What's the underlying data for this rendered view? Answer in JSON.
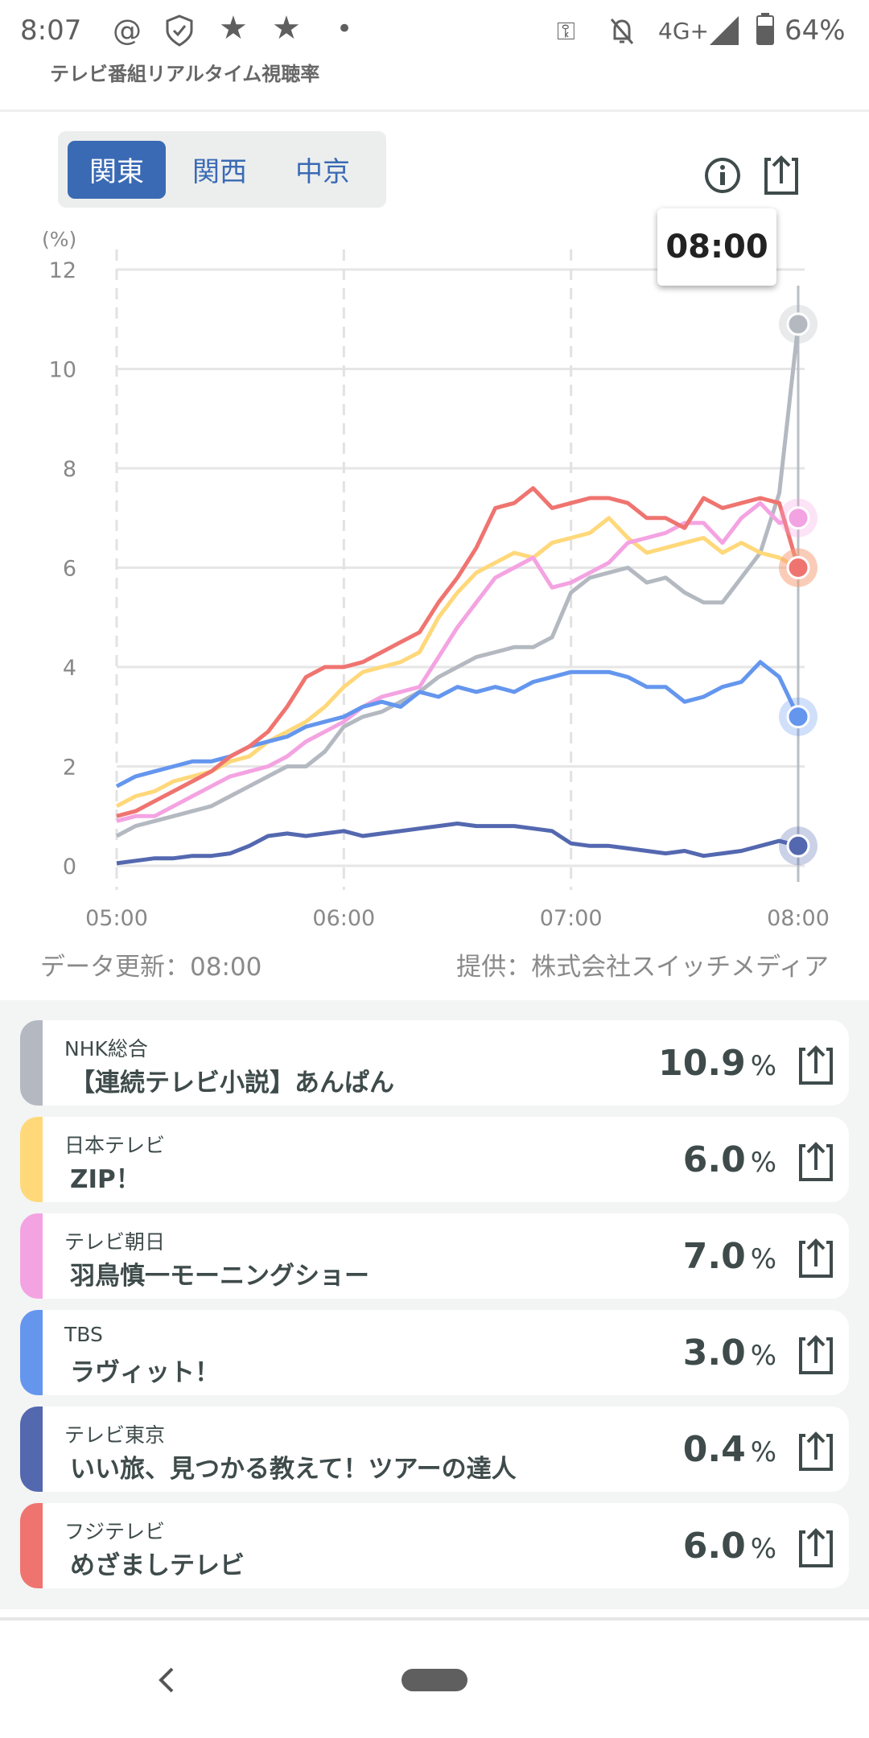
{
  "status": {
    "time": "8:07",
    "network": "4G+",
    "battery": "64%"
  },
  "app": {
    "title": "テレビ番組リアルタイム視聴率"
  },
  "tabs": [
    {
      "label": "関東",
      "active": true
    },
    {
      "label": "関西",
      "active": false
    },
    {
      "label": "中京",
      "active": false
    }
  ],
  "tooltip": {
    "time": "08:00"
  },
  "chart_data": {
    "type": "line",
    "ylabel": "(%)",
    "ylim": [
      0,
      12
    ],
    "yticks": [
      0,
      2,
      4,
      6,
      8,
      10,
      12
    ],
    "xticks": [
      "05:00",
      "06:00",
      "07:00",
      "08:00"
    ],
    "x_start_min": 0,
    "x_end_min": 180,
    "step_min": 5,
    "grid": true,
    "series": [
      {
        "name": "NHK総合",
        "color": "#b4b9c1",
        "values": [
          0.6,
          0.8,
          0.9,
          1.0,
          1.1,
          1.2,
          1.4,
          1.6,
          1.8,
          2.0,
          2.0,
          2.3,
          2.8,
          3.0,
          3.1,
          3.3,
          3.5,
          3.8,
          4.0,
          4.2,
          4.3,
          4.4,
          4.4,
          4.6,
          5.5,
          5.8,
          5.9,
          6.0,
          5.7,
          5.8,
          5.5,
          5.3,
          5.3,
          5.8,
          6.3,
          7.5,
          10.9
        ]
      },
      {
        "name": "日本テレビ",
        "color": "#ffd87a",
        "values": [
          1.2,
          1.4,
          1.5,
          1.7,
          1.8,
          1.9,
          2.1,
          2.2,
          2.5,
          2.7,
          2.9,
          3.2,
          3.6,
          3.9,
          4.0,
          4.1,
          4.3,
          5.0,
          5.5,
          5.9,
          6.1,
          6.3,
          6.2,
          6.5,
          6.6,
          6.7,
          7.0,
          6.6,
          6.3,
          6.4,
          6.5,
          6.6,
          6.3,
          6.5,
          6.3,
          6.2,
          6.0
        ]
      },
      {
        "name": "テレビ朝日",
        "color": "#f4a3e2",
        "values": [
          0.9,
          1.0,
          1.0,
          1.2,
          1.4,
          1.6,
          1.8,
          1.9,
          2.0,
          2.2,
          2.5,
          2.7,
          2.9,
          3.2,
          3.4,
          3.5,
          3.6,
          4.2,
          4.8,
          5.3,
          5.8,
          6.0,
          6.2,
          5.6,
          5.7,
          5.9,
          6.1,
          6.5,
          6.6,
          6.7,
          6.9,
          6.9,
          6.5,
          7.0,
          7.3,
          6.9,
          7.0
        ]
      },
      {
        "name": "TBS",
        "color": "#6496ee",
        "values": [
          1.6,
          1.8,
          1.9,
          2.0,
          2.1,
          2.1,
          2.2,
          2.4,
          2.5,
          2.6,
          2.8,
          2.9,
          3.0,
          3.2,
          3.3,
          3.2,
          3.5,
          3.4,
          3.6,
          3.5,
          3.6,
          3.5,
          3.7,
          3.8,
          3.9,
          3.9,
          3.9,
          3.8,
          3.6,
          3.6,
          3.3,
          3.4,
          3.6,
          3.7,
          4.1,
          3.8,
          3.0
        ]
      },
      {
        "name": "テレビ東京",
        "color": "#5468b0",
        "values": [
          0.05,
          0.1,
          0.15,
          0.15,
          0.2,
          0.2,
          0.25,
          0.4,
          0.6,
          0.65,
          0.6,
          0.65,
          0.7,
          0.6,
          0.65,
          0.7,
          0.75,
          0.8,
          0.85,
          0.8,
          0.8,
          0.8,
          0.75,
          0.7,
          0.45,
          0.4,
          0.4,
          0.35,
          0.3,
          0.25,
          0.3,
          0.2,
          0.25,
          0.3,
          0.4,
          0.5,
          0.4
        ]
      },
      {
        "name": "フジテレビ",
        "color": "#ef7470",
        "values": [
          1.0,
          1.1,
          1.3,
          1.5,
          1.7,
          1.9,
          2.2,
          2.4,
          2.7,
          3.2,
          3.8,
          4.0,
          4.0,
          4.1,
          4.3,
          4.5,
          4.7,
          5.3,
          5.8,
          6.4,
          7.2,
          7.3,
          7.6,
          7.2,
          7.3,
          7.4,
          7.4,
          7.3,
          7.0,
          7.0,
          6.8,
          7.4,
          7.2,
          7.3,
          7.4,
          7.3,
          6.0
        ]
      }
    ]
  },
  "footer": {
    "updated": "データ更新：08:00",
    "provider": "提供：株式会社スイッチメディア"
  },
  "channels": [
    {
      "station": "NHK総合",
      "program": "【連続テレビ小説】あんぱん",
      "rating": "10.9",
      "unit": "%",
      "color": "#b4b9c1"
    },
    {
      "station": "日本テレビ",
      "program": "ZIP！",
      "rating": "6.0",
      "unit": "%",
      "color": "#ffd87a"
    },
    {
      "station": "テレビ朝日",
      "program": "羽鳥慎一モーニングショー",
      "rating": "7.0",
      "unit": "%",
      "color": "#f4a3e2"
    },
    {
      "station": "TBS",
      "program": "ラヴィット！",
      "rating": "3.0",
      "unit": "%",
      "color": "#6496ee"
    },
    {
      "station": "テレビ東京",
      "program": "いい旅、見つかる教えて！ツアーの達人",
      "rating": "0.4",
      "unit": "%",
      "color": "#5468b0"
    },
    {
      "station": "フジテレビ",
      "program": "めざましテレビ",
      "rating": "6.0",
      "unit": "%",
      "color": "#ef7470"
    }
  ]
}
